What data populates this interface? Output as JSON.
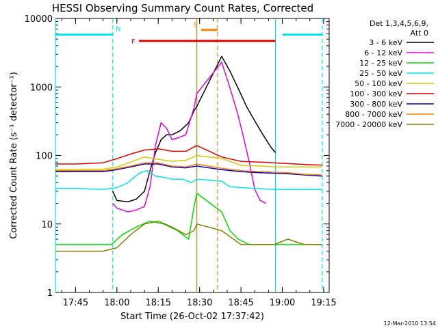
{
  "chart_data": {
    "type": "line",
    "title": "HESSI Observing Summary Count Rates, Corrected",
    "xlabel": "Start Time (26-Oct-02 17:37:42)",
    "ylabel": "Corrected Count Rate (s⁻¹ detector⁻¹)",
    "yscale": "log",
    "ylim": [
      1,
      10000
    ],
    "xlim": [
      "17:37:42",
      "19:17:00"
    ],
    "yticks": [
      1,
      10,
      100,
      1000,
      10000
    ],
    "ytick_labels": [
      "1",
      "10",
      "100",
      "1000",
      "10000"
    ],
    "xticks": [
      "17:45",
      "18:00",
      "18:15",
      "18:30",
      "18:45",
      "19:00",
      "19:15"
    ],
    "date_label": "12-Mar-2010 13:54",
    "legend": {
      "position": "right",
      "header": [
        "Det 1,3,4,5,6,9,",
        "Att 0"
      ],
      "entries": [
        {
          "name": "3 - 6 keV",
          "color": "#000000"
        },
        {
          "name": "6 - 12 keV",
          "color": "#e000e0"
        },
        {
          "name": "12 - 25 keV",
          "color": "#00dd00"
        },
        {
          "name": "25 - 50 keV",
          "color": "#00e5e5"
        },
        {
          "name": "50 - 100 keV",
          "color": "#d8c800"
        },
        {
          "name": "100 - 300 keV",
          "color": "#e00000"
        },
        {
          "name": "300 - 800 keV",
          "color": "#0000cc"
        },
        {
          "name": "800 - 7000 keV",
          "color": "#ff8000"
        },
        {
          "name": "7000 - 20000 keV",
          "color": "#808000"
        }
      ]
    },
    "annotations": [
      {
        "label": "N",
        "color": "#00e5e5",
        "type": "night",
        "segments": [
          [
            "17:37:42",
            "17:58:30"
          ],
          [
            "19:00:00",
            "19:14:30"
          ]
        ],
        "y": 5800
      },
      {
        "label": "S",
        "color": "#ff8000",
        "type": "saa",
        "segments": [
          [
            "18:30:30",
            "18:36:30"
          ]
        ],
        "y": 6800
      },
      {
        "label": "F",
        "color": "#e00000",
        "type": "flare",
        "segments": [
          [
            "18:08:00",
            "18:57:30"
          ]
        ],
        "y": 4700
      }
    ],
    "vlines": [
      {
        "x": "17:37:42",
        "color": "#00e5e5",
        "style": "solid"
      },
      {
        "x": "17:58:30",
        "color": "#00e5e5",
        "style": "dashed"
      },
      {
        "x": "18:29:00",
        "color": "#b8860b",
        "style": "solid"
      },
      {
        "x": "18:36:30",
        "color": "#ff8000",
        "style": "dashed"
      },
      {
        "x": "18:57:30",
        "color": "#00e5e5",
        "style": "solid"
      },
      {
        "x": "19:14:30",
        "color": "#00e5e5",
        "style": "dashed"
      }
    ],
    "series": [
      {
        "name": "3 - 6 keV",
        "color": "#000000",
        "x": [
          "17:58:30",
          "18:00",
          "18:04",
          "18:07",
          "18:10",
          "18:12",
          "18:14",
          "18:16",
          "18:18",
          "18:20",
          "18:23",
          "18:26",
          "18:28",
          "18:29",
          "18:38",
          "18:41",
          "18:44",
          "18:47",
          "18:50",
          "18:53",
          "18:56",
          "18:57:30"
        ],
        "y": [
          30,
          22,
          21,
          23,
          30,
          60,
          110,
          170,
          200,
          200,
          230,
          300,
          450,
          520,
          2800,
          1700,
          950,
          520,
          320,
          200,
          130,
          110
        ]
      },
      {
        "name": "6 - 12 keV",
        "color": "#e000e0",
        "x": [
          "17:58:30",
          "18:00",
          "18:04",
          "18:07",
          "18:10",
          "18:12",
          "18:14",
          "18:16",
          "18:18",
          "18:20",
          "18:22",
          "18:25",
          "18:28",
          "18:29",
          "18:38",
          "18:40",
          "18:42",
          "18:44",
          "18:46",
          "18:48",
          "18:50",
          "18:52",
          "18:54"
        ],
        "y": [
          20,
          17,
          15,
          16,
          18,
          35,
          140,
          300,
          250,
          170,
          180,
          200,
          500,
          800,
          2300,
          1300,
          720,
          380,
          180,
          80,
          32,
          22,
          20
        ]
      },
      {
        "name": "12 - 25 keV",
        "color": "#00dd00",
        "x": [
          "17:37:42",
          "17:45",
          "17:55",
          "17:58",
          "18:02",
          "18:07",
          "18:12",
          "18:17",
          "18:22",
          "18:26",
          "18:28",
          "18:29",
          "18:38",
          "18:41",
          "18:44",
          "18:48",
          "18:52",
          "18:57",
          "19:02",
          "19:08",
          "19:14:30"
        ],
        "y": [
          5,
          5,
          5,
          5,
          7,
          9,
          11,
          10,
          8,
          6,
          18,
          28,
          15,
          8,
          6,
          5,
          5,
          5,
          5,
          5,
          5
        ]
      },
      {
        "name": "25 - 50 keV",
        "color": "#00e5e5",
        "x": [
          "17:37:42",
          "17:45",
          "17:55",
          "18:00",
          "18:04",
          "18:08",
          "18:11",
          "18:14",
          "18:17",
          "18:20",
          "18:24",
          "18:27",
          "18:29",
          "18:38",
          "18:41",
          "18:45",
          "18:50",
          "18:57",
          "19:02",
          "19:08",
          "19:14:30"
        ],
        "y": [
          33,
          33,
          32,
          34,
          40,
          55,
          60,
          50,
          48,
          45,
          45,
          40,
          45,
          42,
          35,
          34,
          33,
          32,
          32,
          32,
          32
        ]
      },
      {
        "name": "50 - 100 keV",
        "color": "#d8c800",
        "x": [
          "17:37:42",
          "17:45",
          "17:55",
          "18:00",
          "18:05",
          "18:10",
          "18:15",
          "18:20",
          "18:25",
          "18:29",
          "18:38",
          "18:45",
          "18:52",
          "18:57",
          "19:02",
          "19:08",
          "19:14:30"
        ],
        "y": [
          62,
          62,
          63,
          68,
          80,
          95,
          88,
          82,
          85,
          100,
          90,
          72,
          70,
          68,
          68,
          68,
          68
        ]
      },
      {
        "name": "100 - 300 keV",
        "color": "#e00000",
        "x": [
          "17:37:42",
          "17:45",
          "17:55",
          "18:00",
          "18:05",
          "18:10",
          "18:15",
          "18:20",
          "18:25",
          "18:29",
          "18:38",
          "18:45",
          "18:52",
          "18:57",
          "19:02",
          "19:08",
          "19:14:30"
        ],
        "y": [
          75,
          75,
          78,
          90,
          105,
          120,
          125,
          115,
          115,
          140,
          95,
          82,
          80,
          78,
          76,
          74,
          72
        ]
      },
      {
        "name": "300 - 800 keV",
        "color": "#0000cc",
        "x": [
          "17:37:42",
          "17:45",
          "17:55",
          "18:00",
          "18:05",
          "18:10",
          "18:15",
          "18:20",
          "18:25",
          "18:29",
          "18:38",
          "18:45",
          "18:52",
          "18:57",
          "19:02",
          "19:08",
          "19:14:30"
        ],
        "y": [
          58,
          58,
          58,
          62,
          68,
          75,
          75,
          68,
          66,
          70,
          62,
          58,
          56,
          55,
          54,
          52,
          50
        ]
      },
      {
        "name": "800 - 7000 keV",
        "color": "#ff8000",
        "x": [
          "17:37:42",
          "17:45",
          "17:55",
          "18:00",
          "18:05",
          "18:10",
          "18:15",
          "18:20",
          "18:25",
          "18:29",
          "18:38",
          "18:45",
          "18:52",
          "18:57",
          "19:02",
          "19:08",
          "19:14:30"
        ],
        "y": [
          60,
          60,
          60,
          64,
          70,
          78,
          78,
          70,
          68,
          75,
          65,
          60,
          58,
          57,
          56,
          53,
          52
        ]
      },
      {
        "name": "7000 - 20000 keV",
        "color": "#808000",
        "x": [
          "17:37:42",
          "17:45",
          "17:55",
          "18:00",
          "18:05",
          "18:10",
          "18:15",
          "18:20",
          "18:25",
          "18:28",
          "18:29",
          "18:38",
          "18:45",
          "18:57",
          "19:02",
          "19:08",
          "19:14:30"
        ],
        "y": [
          4,
          4,
          4,
          4.5,
          7,
          10,
          11,
          9,
          7,
          8,
          10,
          8,
          5,
          5,
          6,
          5,
          5
        ]
      }
    ]
  }
}
